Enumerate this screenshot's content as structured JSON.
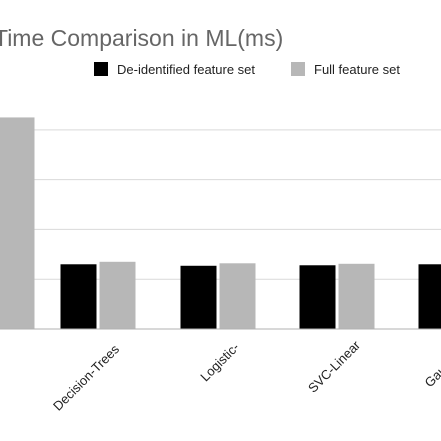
{
  "chart_data": {
    "type": "bar",
    "title": "Time Comparison in ML(ms)",
    "xlabel": "",
    "ylabel": "",
    "categories": [
      "",
      "Decision-Trees",
      "Logistic-",
      "SVC-Linear",
      "Gaus"
    ],
    "series": [
      {
        "name": "De-identified feature set",
        "color": "#000000",
        "values": [
          null,
          1.3,
          1.27,
          1.28,
          1.3
        ]
      },
      {
        "name": "Full feature set",
        "color": "#b7b7b7",
        "values": [
          4.25,
          1.35,
          1.32,
          1.31,
          null
        ]
      }
    ],
    "ylim": [
      0,
      4.6
    ],
    "grid": true,
    "legend_position": "top-right"
  }
}
